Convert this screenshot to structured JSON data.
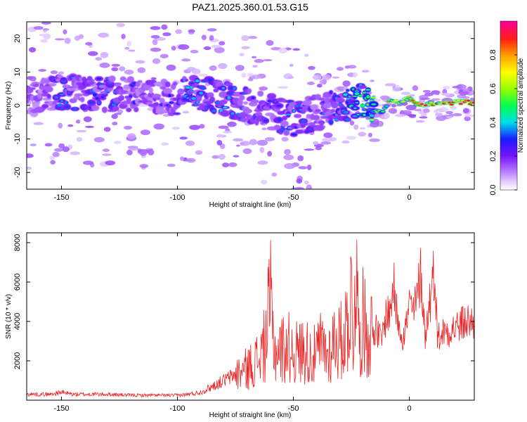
{
  "chart_data": [
    {
      "type": "heatmap",
      "title": "PAZ1.2025.360.01.53.G15",
      "xlabel": "Height of straight line (km)",
      "ylabel": "Frequency (Hz)",
      "xlim": [
        -165,
        28
      ],
      "ylim": [
        -25,
        25
      ],
      "xticks": [
        -150,
        -100,
        -50,
        0
      ],
      "yticks": [
        -20,
        -10,
        0,
        10,
        20
      ],
      "colorbar": {
        "label": "Normalized spectral amplitude",
        "range": [
          0,
          1
        ],
        "ticks": [
          0.0,
          0.2,
          0.4,
          0.6,
          0.8
        ],
        "tick_labels": [
          "0.0",
          "0.2",
          "0.4",
          "0.6",
          "0.8"
        ]
      },
      "ridge": {
        "x": [
          -160,
          -150,
          -140,
          -130,
          -120,
          -110,
          -100,
          -95,
          -90,
          -85,
          -80,
          -75,
          -70,
          -65,
          -60,
          -55,
          -50,
          -45,
          -40,
          -35,
          -30,
          -25,
          -20,
          -15,
          -12,
          -8,
          -5,
          0,
          5,
          10,
          15,
          20,
          28
        ],
        "freq": [
          2.5,
          4,
          3.5,
          3.5,
          3,
          2.5,
          2,
          4,
          3,
          3,
          2,
          1,
          0,
          -1,
          -2,
          -3,
          -4,
          -3,
          -2,
          -1,
          0,
          1,
          2,
          -1,
          -2,
          1.5,
          1,
          2,
          0,
          0.5,
          0.5,
          1,
          1
        ],
        "amplitude": [
          0.25,
          0.35,
          0.32,
          0.35,
          0.3,
          0.28,
          0.3,
          0.4,
          0.35,
          0.38,
          0.4,
          0.35,
          0.3,
          0.35,
          0.3,
          0.35,
          0.38,
          0.35,
          0.3,
          0.35,
          0.4,
          0.45,
          0.5,
          0.6,
          0.55,
          0.85,
          0.9,
          0.95,
          0.95,
          0.95,
          0.9,
          0.95,
          0.95
        ]
      }
    },
    {
      "type": "line",
      "xlabel": "Height of straight line (km)",
      "ylabel": "SNR (10 * v/v)",
      "xlim": [
        -165,
        28
      ],
      "ylim": [
        0,
        8500
      ],
      "xticks": [
        -150,
        -100,
        -50,
        0
      ],
      "yticks": [
        2000,
        4000,
        6000,
        8000
      ],
      "series": [
        {
          "name": "SNR",
          "color": "#ee2222",
          "x": [
            -165,
            -155,
            -150,
            -145,
            -140,
            -130,
            -120,
            -110,
            -100,
            -95,
            -90,
            -85,
            -80,
            -75,
            -70,
            -65,
            -62,
            -60,
            -58,
            -55,
            -52,
            -50,
            -48,
            -45,
            -42,
            -40,
            -38,
            -35,
            -32,
            -30,
            -28,
            -25,
            -24,
            -23,
            -22,
            -20,
            -18,
            -15,
            -12,
            -10,
            -8,
            -7,
            -6,
            -5,
            -3,
            -2,
            0,
            2,
            3,
            5,
            7,
            8,
            10,
            11,
            12,
            15,
            20,
            25,
            28
          ],
          "y": [
            300,
            300,
            400,
            300,
            300,
            300,
            250,
            250,
            250,
            300,
            400,
            700,
            1000,
            1300,
            1600,
            2100,
            2900,
            5000,
            2500,
            2600,
            2700,
            2500,
            2400,
            2600,
            2200,
            2300,
            2800,
            2300,
            3200,
            2900,
            3300,
            5100,
            3000,
            8300,
            3200,
            4000,
            3400,
            3700,
            3000,
            4400,
            4500,
            6200,
            4700,
            4300,
            3300,
            3400,
            4800,
            4500,
            5000,
            6500,
            3000,
            4500,
            5900,
            7000,
            3200,
            3500,
            3700,
            4000,
            3900
          ]
        }
      ]
    }
  ]
}
